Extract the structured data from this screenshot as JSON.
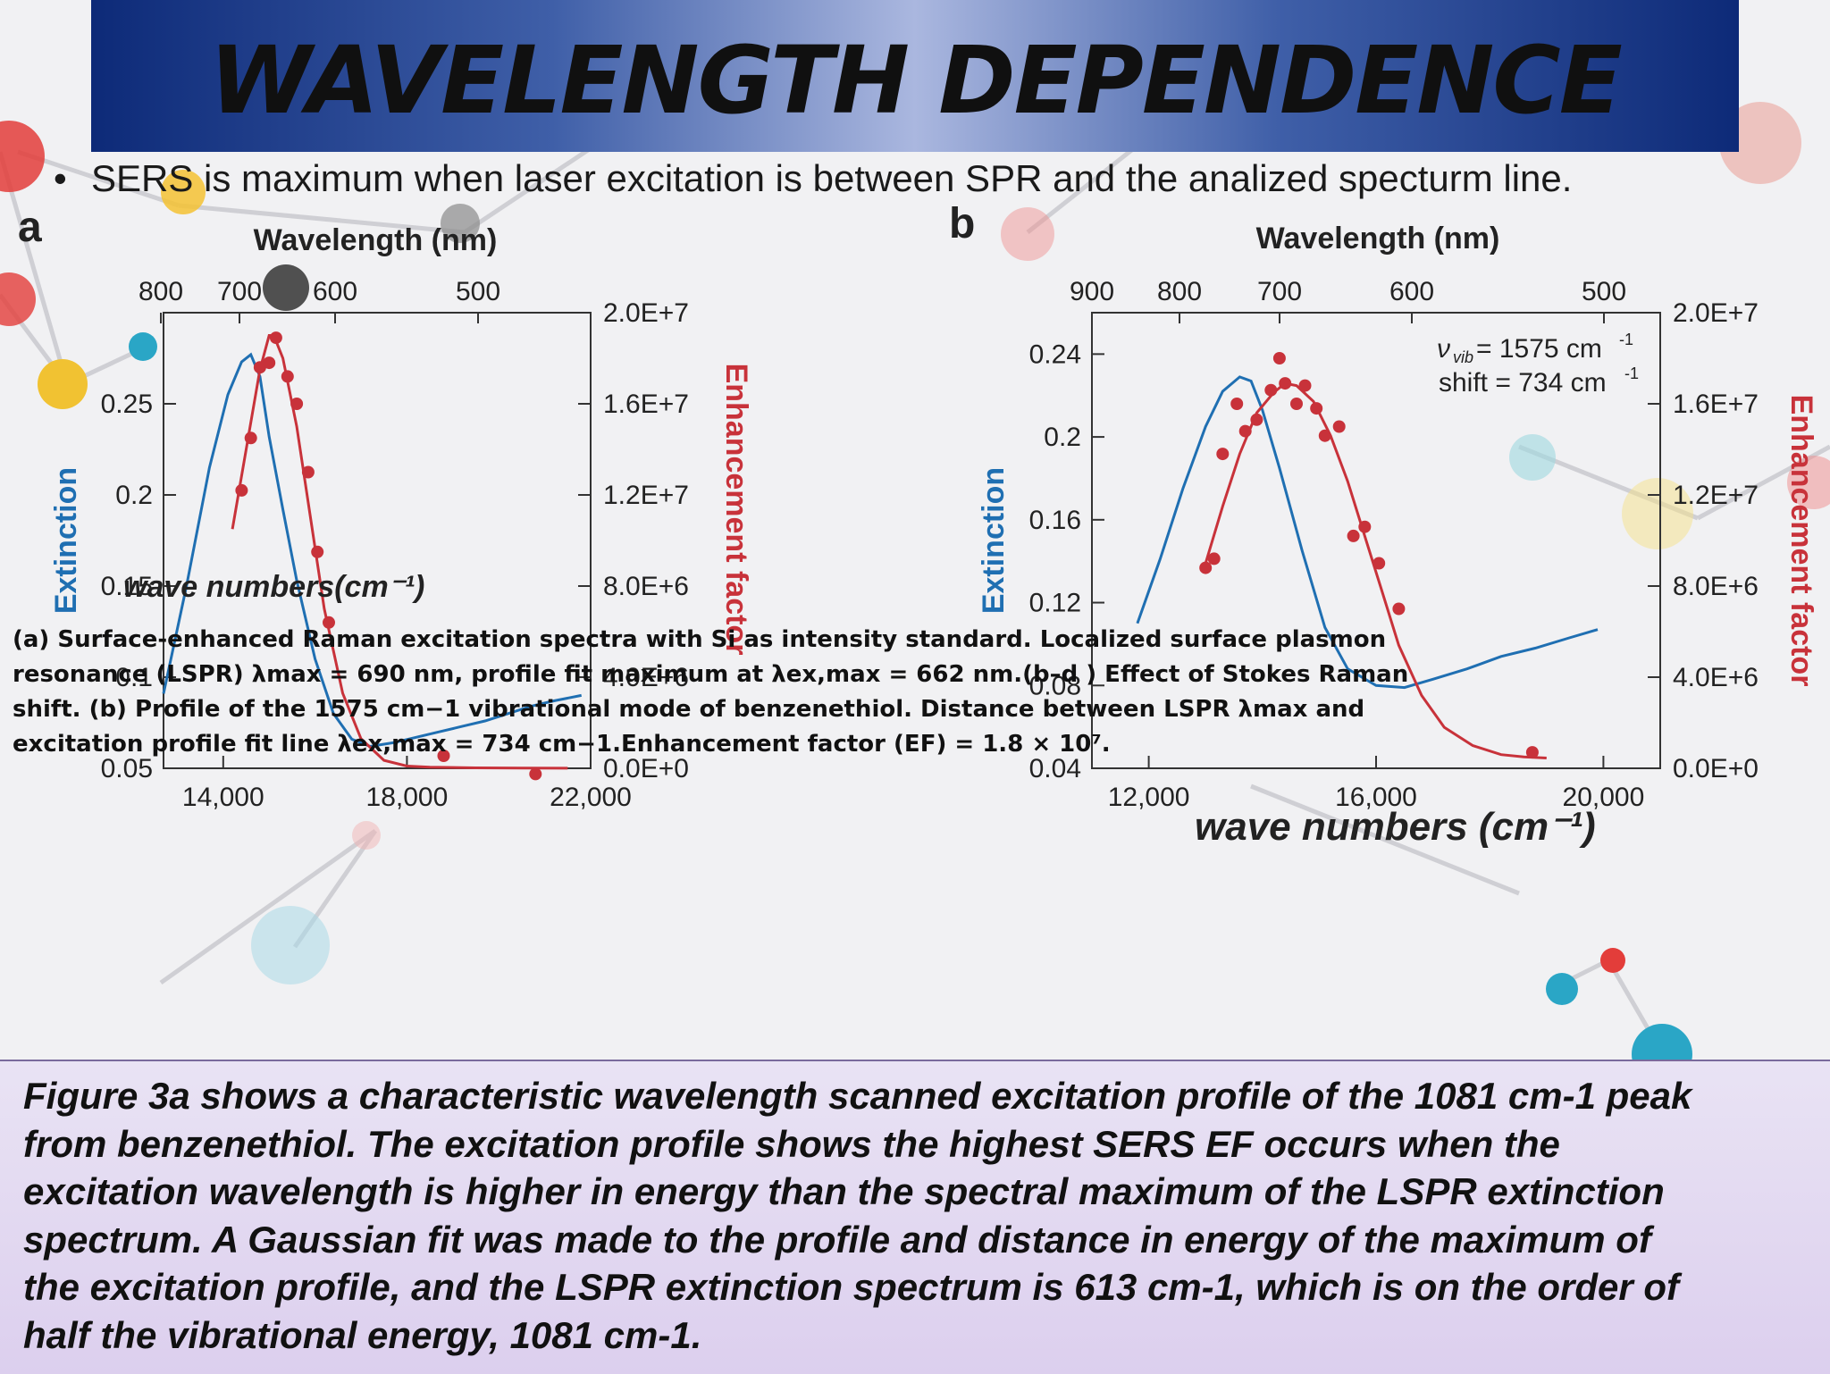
{
  "slide": {
    "title": "WAVELENGTH DEPENDENCE",
    "bullet": "SERS is maximum when laser excitation is between SPR and the analized specturm line."
  },
  "caption_lines": [
    "(a) Surface-enhanced Raman excitation spectra with Si as intensity standard. Localized surface plasmon",
    "resonance (LSPR) λmax = 690 nm, profile fit maximum at λex,max = 662 nm.(b–d ) Effect of Stokes Raman",
    "shift. (b) Profile of the 1575 cm−1 vibrational mode of benzenethiol. Distance between LSPR λmax and",
    "excitation profile fit line λex,max = 734 cm−1.Enhancement factor (EF) = 1.8 × 10⁷."
  ],
  "body_lines": [
    "Figure 3a shows a characteristic wavelength scanned excitation profile of the 1081 cm-1 peak",
    "from benzenethiol. The excitation profile shows the highest SERS EF occurs when the",
    "excitation wavelength is higher in energy than the spectral maximum of the LSPR extinction",
    "spectrum. A Gaussian fit was made to the profile and distance in energy of the maximum of",
    "the excitation profile, and the LSPR extinction spectrum is 613 cm-1, which is on the order of",
    "half the vibrational energy, 1081 cm-1."
  ],
  "chart_data": [
    {
      "panel": "a",
      "type": "line",
      "x_top_label": "Wavelength (nm)",
      "x_top_ticks": [
        800,
        700,
        600,
        500
      ],
      "xlabel": "wave numbers(cm⁻¹)",
      "xlim": [
        12700,
        22000
      ],
      "x_ticks": [
        "14,000",
        "18,000",
        "22,000"
      ],
      "x_tick_values": [
        14000,
        18000,
        22000
      ],
      "ylabel_left": "Extinction",
      "ylim_left": [
        0.05,
        0.3
      ],
      "y_left_ticks": [
        "0.25",
        "0.2",
        "0.15",
        "0.1",
        "0.05"
      ],
      "y_left_tick_values": [
        0.25,
        0.2,
        0.15,
        0.1,
        0.05
      ],
      "ylabel_right": "Enhancement factor",
      "ylim_right": [
        0,
        20000000
      ],
      "y_right_ticks": [
        "2.0E+7",
        "1.6E+7",
        "1.2E+7",
        "8.0E+6",
        "4.0E+6",
        "0.0E+0"
      ],
      "y_right_tick_values": [
        20000000,
        16000000,
        12000000,
        8000000,
        4000000,
        0
      ],
      "series": [
        {
          "kind": "extinction_line",
          "color": "#1f6fb2",
          "x": [
            12700,
            13200,
            13700,
            14100,
            14400,
            14600,
            14800,
            15000,
            15300,
            15600,
            16000,
            16400,
            16800,
            17200,
            17700,
            18200,
            18700,
            19200,
            19700,
            20200,
            20700,
            21200,
            21800
          ],
          "y": [
            0.091,
            0.15,
            0.215,
            0.255,
            0.273,
            0.277,
            0.265,
            0.232,
            0.192,
            0.153,
            0.11,
            0.08,
            0.066,
            0.062,
            0.064,
            0.067,
            0.07,
            0.073,
            0.076,
            0.08,
            0.084,
            0.087,
            0.09
          ]
        },
        {
          "kind": "fit_line",
          "color": "#c8323a",
          "x": [
            14200,
            14500,
            14800,
            15000,
            15100,
            15300,
            15600,
            15900,
            16200,
            16600,
            17000,
            17500,
            18000,
            18500,
            19500,
            20500,
            21500
          ],
          "y": [
            10500000,
            14000000,
            17500000,
            19000000,
            19000000,
            18000000,
            15000000,
            11000000,
            7000000,
            3300000,
            1300000,
            350000,
            100000,
            50000,
            20000,
            10000,
            5000
          ]
        },
        {
          "kind": "measured_points",
          "color": "#c8323a",
          "x": [
            14400,
            14600,
            14800,
            15000,
            15150,
            15400,
            15600,
            15850,
            16050,
            16300,
            18800,
            20800
          ],
          "y": [
            12200000,
            14500000,
            17600000,
            17800000,
            18900000,
            17200000,
            16000000,
            13000000,
            9500000,
            6400000,
            550000,
            -250000
          ]
        }
      ]
    },
    {
      "panel": "b",
      "type": "line",
      "x_top_label": "Wavelength (nm)",
      "x_top_ticks": [
        900,
        800,
        700,
        600,
        500
      ],
      "xlabel": "wave numbers (cm⁻¹)",
      "xlim": [
        11000,
        21000
      ],
      "x_ticks": [
        "12,000",
        "16,000",
        "20,000"
      ],
      "x_tick_values": [
        12000,
        16000,
        20000
      ],
      "ylabel_left": "Extinction",
      "ylim_left": [
        0.04,
        0.26
      ],
      "y_left_ticks": [
        "0.24",
        "0.2",
        "0.16",
        "0.12",
        "0.08",
        "0.04"
      ],
      "y_left_tick_values": [
        0.24,
        0.2,
        0.16,
        0.12,
        0.08,
        0.04
      ],
      "ylabel_right": "Enhancement factor",
      "ylim_right": [
        0,
        20000000
      ],
      "y_right_ticks": [
        "2.0E+7",
        "1.6E+7",
        "1.2E+7",
        "8.0E+6",
        "4.0E+6",
        "0.0E+0"
      ],
      "y_right_tick_values": [
        20000000,
        16000000,
        12000000,
        8000000,
        4000000,
        0
      ],
      "annotation_vib": "= 1575 cm",
      "annotation_vib_symbol": "ν",
      "annotation_vib_sub": "vib",
      "annotation_shift": "shift = 734 cm",
      "annotation_sup": "-1",
      "series": [
        {
          "kind": "extinction_line",
          "color": "#1f6fb2",
          "x": [
            11800,
            12200,
            12600,
            13000,
            13300,
            13600,
            13800,
            14000,
            14300,
            14700,
            15100,
            15500,
            16000,
            16500,
            17000,
            17600,
            18200,
            18800,
            19400,
            19900
          ],
          "y": [
            0.11,
            0.141,
            0.175,
            0.205,
            0.222,
            0.229,
            0.227,
            0.213,
            0.185,
            0.145,
            0.108,
            0.088,
            0.08,
            0.079,
            0.083,
            0.088,
            0.094,
            0.098,
            0.103,
            0.107
          ]
        },
        {
          "kind": "fit_line",
          "color": "#c8323a",
          "x": [
            13000,
            13300,
            13600,
            13900,
            14200,
            14400,
            14600,
            14900,
            15200,
            15500,
            15800,
            16100,
            16400,
            16800,
            17200,
            17700,
            18200,
            18600,
            19000
          ],
          "y": [
            9000000,
            11500000,
            13800000,
            15600000,
            16500000,
            16900000,
            16800000,
            16100000,
            14600000,
            12600000,
            10200000,
            7800000,
            5400000,
            3200000,
            1800000,
            1000000,
            600000,
            500000,
            450000
          ]
        },
        {
          "kind": "measured_points",
          "color": "#c8323a",
          "x": [
            13000,
            13150,
            13300,
            13550,
            13700,
            13900,
            14150,
            14300,
            14400,
            14600,
            14750,
            14950,
            15100,
            15350,
            15600,
            15800,
            16050,
            16400,
            18750
          ],
          "y": [
            8800000,
            9200000,
            13800000,
            16000000,
            14800000,
            15300000,
            16600000,
            18000000,
            16900000,
            16000000,
            16800000,
            15800000,
            14600000,
            15000000,
            10200000,
            10600000,
            9000000,
            7000000,
            700000
          ]
        }
      ]
    }
  ]
}
